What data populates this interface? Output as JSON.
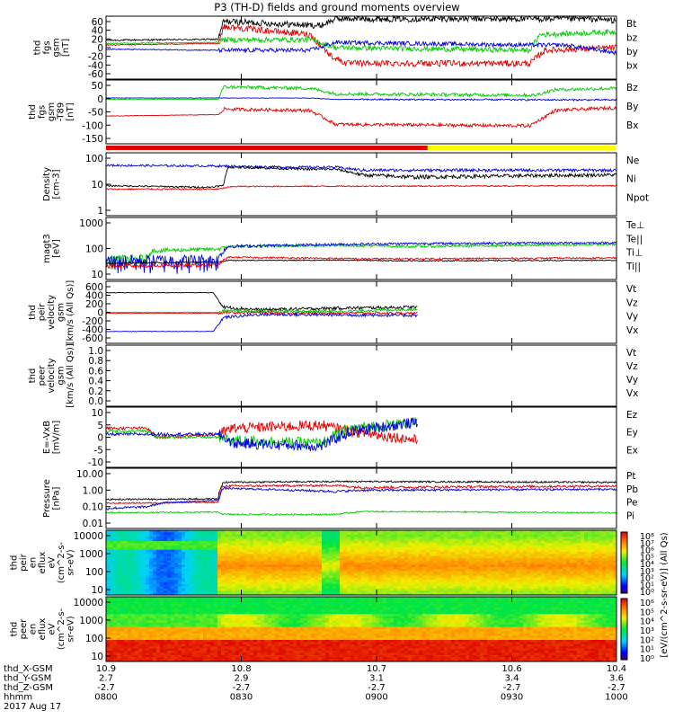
{
  "title": "P3 (TH-D) fields and ground moments overview",
  "footer": {
    "date": "2017 Aug 17",
    "row_labels": [
      "thd_X-GSM",
      "thd_Y-GSM",
      "thd_Z-GSM",
      "hhmm"
    ],
    "columns": [
      [
        "10.9",
        "2.7",
        "-2.7",
        "0800"
      ],
      [
        "10.8",
        "2.9",
        "-2.7",
        "0830"
      ],
      [
        "10.7",
        "3.1",
        "-2.7",
        "0900"
      ],
      [
        "10.6",
        "3.4",
        "-2.7",
        "0930"
      ],
      [
        "10.4",
        "3.6",
        "-2.7",
        "1000"
      ]
    ]
  },
  "colorbar": {
    "ticks": [
      "10⁰",
      "10¹",
      "10²",
      "10³",
      "10⁴",
      "10⁵",
      "10⁶",
      "10⁷",
      "10⁸"
    ],
    "ticks_lower": [
      "10⁰",
      "10¹",
      "10²",
      "10³",
      "10⁴",
      "10⁵",
      "10⁶"
    ],
    "label": "[eV/(cm^2-s-sr-eV)] (All Qs)"
  },
  "chart_data": [
    {
      "type": "line",
      "panel": "fgs",
      "ylabel": [
        "thd",
        "fgs",
        "gsm",
        "[nT]"
      ],
      "ylim": [
        -60,
        60
      ],
      "yticks": [
        "60",
        "40",
        "20",
        "0",
        "-20",
        "-40",
        "-60"
      ],
      "legend": [
        "Bt",
        "bz",
        "by",
        "bx"
      ],
      "colors": [
        "#000000",
        "#e00000",
        "#00cc00",
        "#0000e0"
      ]
    },
    {
      "type": "line",
      "panel": "fgs-t89",
      "ylabel": [
        "thd",
        "fgs",
        "gsm",
        "-T89",
        "[nT]"
      ],
      "ylim": [
        -170,
        60
      ],
      "yticks": [
        "50",
        "0",
        "-50",
        "-100",
        "-150"
      ],
      "legend": [
        "Bz",
        "By",
        "Bx"
      ],
      "colors": [
        "#e00000",
        "#00cc00",
        "#0000e0"
      ]
    },
    {
      "type": "line",
      "panel": "density",
      "ylabel": [
        "Density",
        "[cm-3]"
      ],
      "yscale": "log",
      "yticks": [
        "100",
        "10",
        "1"
      ],
      "legend": [
        "Ne",
        "Ni",
        "Npot"
      ],
      "colors": [
        "#e00000",
        "#000000",
        "#0000e0"
      ]
    },
    {
      "type": "line",
      "panel": "temperature",
      "ylabel": [
        "magt3",
        "[eV]"
      ],
      "yscale": "log",
      "yticks": [
        "1000",
        "100",
        "10"
      ],
      "legend": [
        "Te⊥",
        "Te||",
        "Ti⊥",
        "Ti||"
      ],
      "colors": [
        "#e00000",
        "#000000",
        "#00cc00",
        "#00cc00"
      ]
    },
    {
      "type": "line",
      "panel": "peir-velocity",
      "ylabel": [
        "thd",
        "peir",
        "velocity",
        "gsm",
        "[km/s (All Qs)]"
      ],
      "ylim": [
        -600,
        600
      ],
      "yticks": [
        "600",
        "400",
        "200",
        "0",
        "-200",
        "-400",
        "-600"
      ],
      "legend": [
        "Vt",
        "Vz",
        "Vy",
        "Vx"
      ],
      "colors": [
        "#000000",
        "#e00000",
        "#00cc00",
        "#0000e0"
      ]
    },
    {
      "type": "line",
      "panel": "peer-velocity",
      "ylabel": [
        "thd",
        "peer",
        "velocity",
        "gsm",
        "[km/s (All Qs)]"
      ],
      "ylim": [
        0,
        1
      ],
      "yticks": [
        "1.0",
        "0.8",
        "0.6",
        "0.4",
        "0.2",
        "0.0"
      ],
      "legend": [
        "Vt",
        "Vz",
        "Vy",
        "Vx"
      ],
      "colors": [
        "#000000",
        "#e00000",
        "#00cc00",
        "#0000e0"
      ]
    },
    {
      "type": "line",
      "panel": "e-field",
      "ylabel": [
        "E=-VxB",
        "[mV/m]"
      ],
      "ylim": [
        -10,
        10
      ],
      "yticks": [
        "10",
        "5",
        "0",
        "-5",
        "-10"
      ],
      "legend": [
        "Ez",
        "Ey",
        "Ex"
      ],
      "colors": [
        "#e00000",
        "#00cc00",
        "#0000e0"
      ]
    },
    {
      "type": "line",
      "panel": "pressure",
      "ylabel": [
        "Pressure",
        "[nPa]"
      ],
      "yscale": "log",
      "yticks": [
        "10.00",
        "1.00",
        "0.10",
        "0.01"
      ],
      "legend": [
        "Pt",
        "Pb",
        "Pe",
        "Pi"
      ],
      "colors": [
        "#000000",
        "#e00000",
        "#00cc00",
        "#0000e0"
      ]
    },
    {
      "type": "heatmap",
      "panel": "peir-spectrogram",
      "ylabel": [
        "thd",
        "peir",
        "en",
        "eflux",
        "eV",
        "(cm^2-s-",
        "sr-eV)"
      ],
      "yscale": "log",
      "yticks": [
        "10000",
        "1000",
        "100",
        "10"
      ]
    },
    {
      "type": "heatmap",
      "panel": "peer-spectrogram",
      "ylabel": [
        "thd",
        "peer",
        "en",
        "eflux",
        "eV",
        "(cm^2-s-",
        "sr-eV)"
      ],
      "yscale": "log",
      "yticks": [
        "10000",
        "1000",
        "100",
        "10"
      ]
    }
  ]
}
